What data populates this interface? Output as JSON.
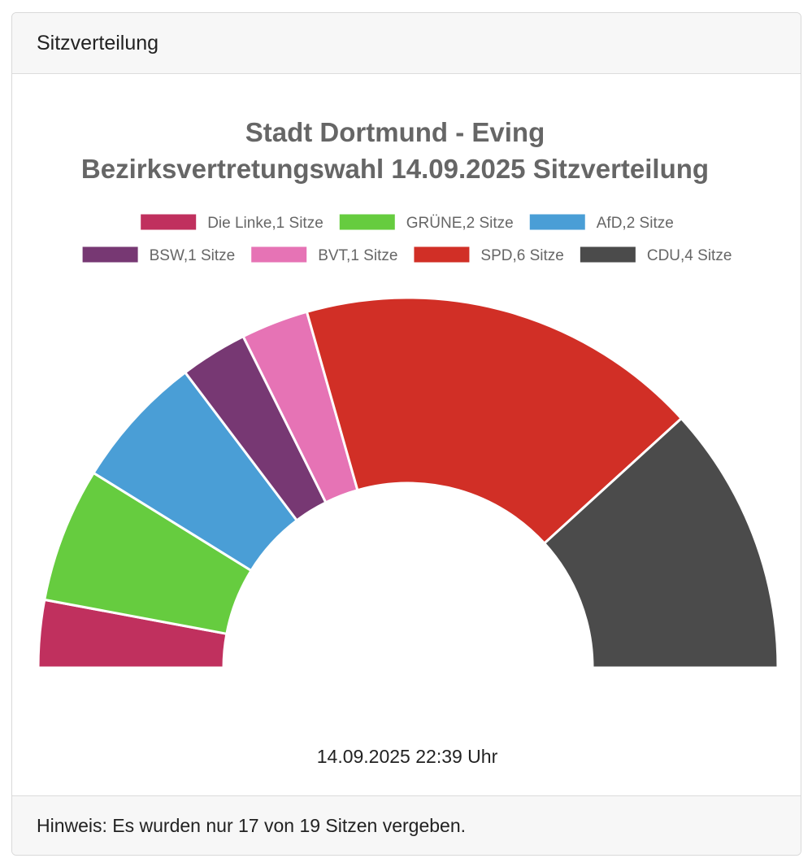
{
  "panel": {
    "header": "Sitzverteilung",
    "footer": "Hinweis: Es wurden nur 17 von 19 Sitzen vergeben."
  },
  "chart_data": {
    "type": "pie",
    "subtype": "half-doughnut",
    "title": [
      "Stadt Dortmund - Eving",
      "Bezirksvertretungswahl 14.09.2025 Sitzverteilung"
    ],
    "legend_position": "top",
    "timestamp": "14.09.2025 22:39 Uhr",
    "series": [
      {
        "name": "Die Linke",
        "value": 1,
        "label": "Die Linke,1 Sitze",
        "color": "#c0305e"
      },
      {
        "name": "GRÜNE",
        "value": 2,
        "label": "GRÜNE,2 Sitze",
        "color": "#66cc3f"
      },
      {
        "name": "AfD",
        "value": 2,
        "label": "AfD,2 Sitze",
        "color": "#4a9ed6"
      },
      {
        "name": "BSW",
        "value": 1,
        "label": "BSW,1 Sitze",
        "color": "#773873"
      },
      {
        "name": "BVT",
        "value": 1,
        "label": "BVT,1 Sitze",
        "color": "#e673b5"
      },
      {
        "name": "SPD",
        "value": 6,
        "label": "SPD,6 Sitze",
        "color": "#d12f26"
      },
      {
        "name": "CDU",
        "value": 4,
        "label": "CDU,4 Sitze",
        "color": "#4b4b4b"
      }
    ]
  }
}
